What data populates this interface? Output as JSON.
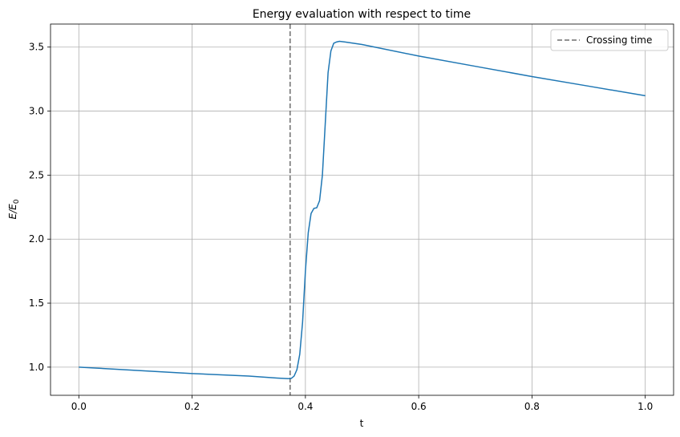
{
  "chart_data": {
    "type": "line",
    "title": "Energy evaluation with respect to time",
    "xlabel": "t",
    "ylabel": "E/E",
    "ylabel_subscript": "0",
    "xlim": [
      -0.05,
      1.05
    ],
    "ylim": [
      0.78,
      3.68
    ],
    "xticks": [
      0.0,
      0.2,
      0.4,
      0.6,
      0.8,
      1.0
    ],
    "xtick_labels": [
      "0.0",
      "0.2",
      "0.4",
      "0.6",
      "0.8",
      "1.0"
    ],
    "yticks": [
      1.0,
      1.5,
      2.0,
      2.5,
      3.0,
      3.5
    ],
    "ytick_labels": [
      "1.0",
      "1.5",
      "2.0",
      "2.5",
      "3.0",
      "3.5"
    ],
    "grid": true,
    "colors": {
      "line": "#1f77b4",
      "crossing": "#6e6e6e",
      "grid": "#b0b0b0"
    },
    "series": [
      {
        "name": "E/E0",
        "x": [
          0.0,
          0.1,
          0.2,
          0.3,
          0.35,
          0.37,
          0.375,
          0.38,
          0.385,
          0.39,
          0.395,
          0.4,
          0.405,
          0.41,
          0.415,
          0.42,
          0.425,
          0.43,
          0.435,
          0.44,
          0.445,
          0.45,
          0.455,
          0.46,
          0.47,
          0.5,
          0.6,
          0.7,
          0.8,
          0.9,
          1.0
        ],
        "y": [
          1.0,
          0.975,
          0.95,
          0.93,
          0.915,
          0.91,
          0.912,
          0.93,
          0.98,
          1.1,
          1.35,
          1.75,
          2.05,
          2.2,
          2.24,
          2.245,
          2.3,
          2.5,
          2.9,
          3.3,
          3.47,
          3.53,
          3.54,
          3.545,
          3.54,
          3.52,
          3.43,
          3.35,
          3.27,
          3.195,
          3.12
        ]
      }
    ],
    "crossing_time": 0.373,
    "legend": {
      "position": "top-right",
      "entries": [
        "Crossing time"
      ]
    }
  }
}
